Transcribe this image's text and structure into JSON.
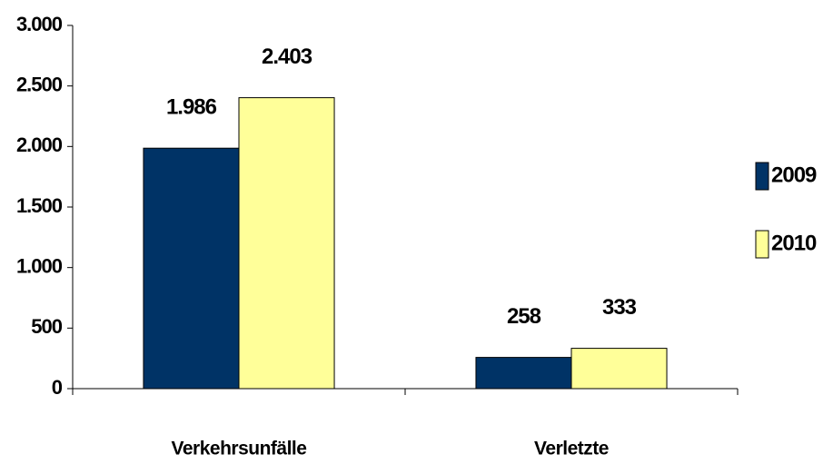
{
  "chart_data": {
    "type": "bar",
    "categories": [
      "Verkehrsunfälle",
      "Verletzte"
    ],
    "series": [
      {
        "name": "2009",
        "color": "#003366",
        "values": [
          1986,
          258
        ],
        "value_labels": [
          "1.986",
          "258"
        ]
      },
      {
        "name": "2010",
        "color": "#ffff99",
        "values": [
          2403,
          333
        ],
        "value_labels": [
          "2.403",
          "333"
        ]
      }
    ],
    "ylim": [
      0,
      3000
    ],
    "yticks": [
      0,
      500,
      {
        "value": 1000,
        "label": "1.000"
      },
      {
        "value": 1500,
        "label": "1.500"
      },
      {
        "value": 2000,
        "label": "2.000"
      },
      {
        "value": 2500,
        "label": "2.500"
      },
      {
        "value": 3000,
        "label": "3.000"
      }
    ],
    "grid": false,
    "legend": "right"
  }
}
